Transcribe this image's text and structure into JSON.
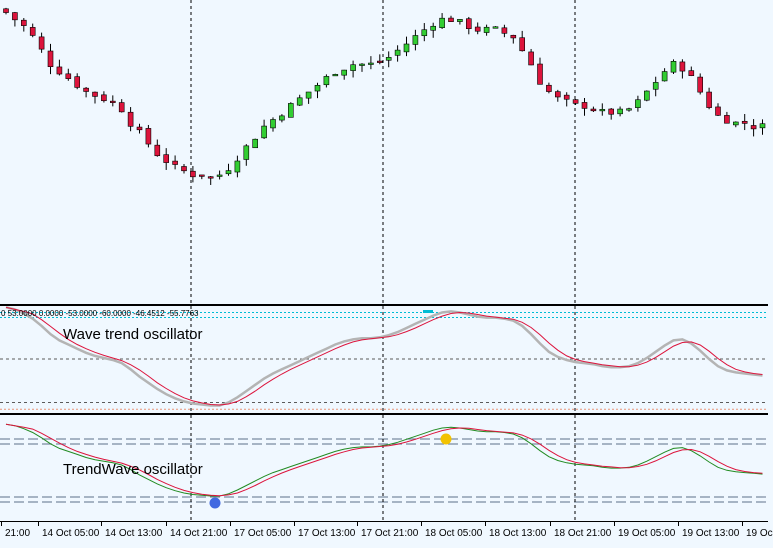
{
  "wave_trend": {
    "title": "Wave trend oscillator",
    "values_text": "0 53.0000 0.0000 -53.0000 -60.0000 -46.4512 -55.7763",
    "levels": [
      53.0,
      0.0,
      -53.0,
      -60.0
    ]
  },
  "trendwave": {
    "title": "TrendWave oscillator",
    "signal_up_color": "#4169e1",
    "signal_down_color": "#f2c200"
  },
  "colors": {
    "background": "#f0f8ff",
    "bull_candle": "#32cd32",
    "bear_candle": "#dc143c",
    "wto_fast": "#dc143c",
    "wto_slow": "#b4b4b4",
    "twv_fast": "#dc143c",
    "twv_slow": "#228b22",
    "level_line": "#5a5a5a",
    "top_level": "#00bcd4",
    "bottom_level": "#e9967a"
  },
  "xaxis": {
    "labels": [
      "21:00",
      "14 Oct 05:00",
      "14 Oct 13:00",
      "14 Oct 21:00",
      "17 Oct 05:00",
      "17 Oct 13:00",
      "17 Oct 21:00",
      "18 Oct 05:00",
      "18 Oct 13:00",
      "18 Oct 21:00",
      "19 Oct 05:00",
      "19 Oct 13:00",
      "19 Oc"
    ]
  },
  "chart_data": {
    "type": "candlestick",
    "title": "",
    "separators": [
      "14 Oct 21:00",
      "17 Oct 21:00",
      "18 Oct 21:00"
    ],
    "price_close_profile": [
      95,
      93,
      91,
      88,
      84,
      80,
      78,
      76,
      74,
      72,
      71,
      70,
      69,
      67,
      63,
      60,
      57,
      54,
      52,
      50,
      49,
      48,
      48,
      47,
      48,
      50,
      53,
      56,
      59,
      62,
      64,
      66,
      68,
      70,
      72,
      74,
      76,
      78,
      79,
      80,
      80,
      80,
      81,
      82,
      84,
      86,
      88,
      90,
      92,
      93,
      93,
      92,
      91,
      90,
      90,
      90,
      89,
      88,
      84,
      80,
      75,
      72,
      70,
      69,
      68,
      68,
      67,
      66,
      66,
      66,
      67,
      69,
      72,
      75,
      78,
      80,
      79,
      76,
      72,
      68,
      65,
      64,
      63,
      63,
      62,
      62
    ]
  }
}
